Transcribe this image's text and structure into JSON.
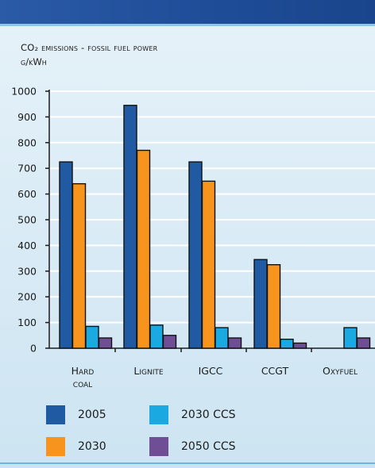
{
  "chart": {
    "title": "CO₂ emissions - fossil fuel power",
    "unit": "g/kWh"
  },
  "chart_data": {
    "type": "bar",
    "title": "CO₂ emissions - fossil fuel power",
    "ylabel": "g/kWh",
    "ylim": [
      0,
      1000
    ],
    "yticks": [
      0,
      100,
      200,
      300,
      400,
      500,
      600,
      700,
      800,
      900,
      1000
    ],
    "grid": true,
    "legend_placement": "bottom",
    "categories": [
      [
        "Hard",
        "coal"
      ],
      [
        "Lignite"
      ],
      [
        "IGCC"
      ],
      [
        "CCGT"
      ],
      [
        "Oxyfuel"
      ]
    ],
    "series": [
      {
        "name": "2005",
        "color": "#1f5aa3",
        "values": [
          725,
          945,
          725,
          345,
          null
        ]
      },
      {
        "name": "2030",
        "color": "#f7941e",
        "values": [
          640,
          770,
          650,
          325,
          null
        ]
      },
      {
        "name": "2030 CCS",
        "color": "#1ba9e1",
        "values": [
          85,
          90,
          80,
          35,
          80
        ]
      },
      {
        "name": "2050 CCS",
        "color": "#6f4e96",
        "values": [
          40,
          50,
          40,
          20,
          40
        ]
      }
    ]
  },
  "colors": {
    "top_bar": "#1e4c97",
    "background": "#d7ebf6",
    "gridline": "#ffffff",
    "axis": "#1b1b1b"
  }
}
